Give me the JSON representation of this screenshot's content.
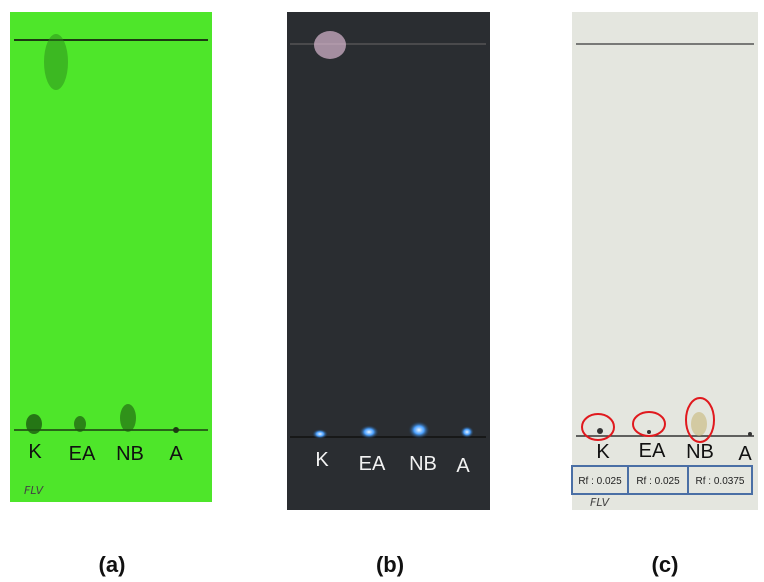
{
  "panels": [
    {
      "caption": "(a)",
      "lanes": [
        "K",
        "EA",
        "NB",
        "A"
      ],
      "note": "FLV"
    },
    {
      "caption": "(b)",
      "lanes": [
        "K",
        "EA",
        "NB",
        "A"
      ]
    },
    {
      "caption": "(c)",
      "lanes": [
        "K",
        "EA",
        "NB",
        "A"
      ],
      "note": "FLV",
      "rf": [
        "Rf : 0.025",
        "Rf : 0.025",
        "Rf : 0.0375"
      ]
    }
  ]
}
